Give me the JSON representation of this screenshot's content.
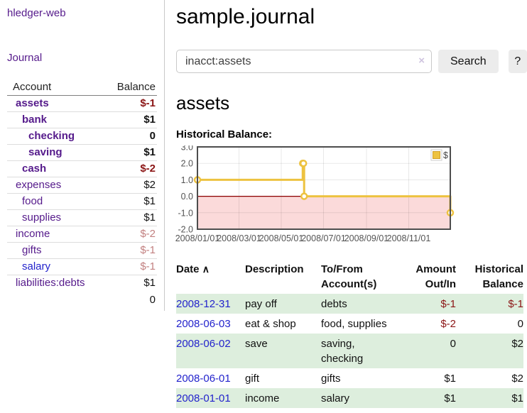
{
  "app": {
    "brand": "hledger-web",
    "nav_journal": "Journal"
  },
  "sidebar": {
    "table_headers": {
      "account": "Account",
      "balance": "Balance"
    },
    "accounts": [
      {
        "name": "assets",
        "balance": "$-1",
        "level": 1,
        "bold": true,
        "balance_style": "neg-strong"
      },
      {
        "name": "bank",
        "balance": "$1",
        "level": 2,
        "bold": true,
        "balance_style": "normal"
      },
      {
        "name": "checking",
        "balance": "0",
        "level": 3,
        "bold": true,
        "balance_style": "normal"
      },
      {
        "name": "saving",
        "balance": "$1",
        "level": 3,
        "bold": true,
        "balance_style": "normal"
      },
      {
        "name": "cash",
        "balance": "$-2",
        "level": 2,
        "bold": true,
        "balance_style": "neg-strong"
      },
      {
        "name": "expenses",
        "balance": "$2",
        "level": 1,
        "bold": false,
        "balance_style": "normal"
      },
      {
        "name": "food",
        "balance": "$1",
        "level": 2,
        "bold": false,
        "balance_style": "normal"
      },
      {
        "name": "supplies",
        "balance": "$1",
        "level": 2,
        "bold": false,
        "balance_style": "normal"
      },
      {
        "name": "income",
        "balance": "$-2",
        "level": 1,
        "bold": false,
        "balance_style": "neg-soft"
      },
      {
        "name": "gifts",
        "balance": "$-1",
        "level": 2,
        "bold": false,
        "balance_style": "neg-soft"
      },
      {
        "name": "salary",
        "balance": "$-1",
        "level": 2,
        "bold": false,
        "balance_style": "neg-soft",
        "link_style": "blue"
      },
      {
        "name": "liabilities:debts",
        "balance": "$1",
        "level": 1,
        "bold": false,
        "balance_style": "normal"
      }
    ],
    "total": "0"
  },
  "header": {
    "title": "sample.journal"
  },
  "search": {
    "value": "inacct:assets",
    "clear_icon": "×",
    "button": "Search",
    "help_button": "?"
  },
  "account_page": {
    "title": "assets"
  },
  "chart_data": {
    "type": "line",
    "step": true,
    "title": "Historical Balance:",
    "series": [
      {
        "name": "$",
        "color": "#edc240",
        "points": [
          {
            "date": "2008-01-01",
            "day": 0,
            "value": 1
          },
          {
            "date": "2008-06-01",
            "day": 152,
            "value": 2
          },
          {
            "date": "2008-06-02",
            "day": 153,
            "value": 2
          },
          {
            "date": "2008-06-03",
            "day": 154,
            "value": 0
          },
          {
            "date": "2008-12-31",
            "day": 365,
            "value": -1
          }
        ]
      }
    ],
    "x_ticks": [
      {
        "label": "2008/01/01",
        "day": 0
      },
      {
        "label": "2008/03/01",
        "day": 60
      },
      {
        "label": "2008/05/01",
        "day": 121
      },
      {
        "label": "2008/07/01",
        "day": 182
      },
      {
        "label": "2008/09/01",
        "day": 244
      },
      {
        "label": "2008/11/01",
        "day": 305
      }
    ],
    "y_ticks": [
      {
        "label": "3.0",
        "value": 3
      },
      {
        "label": "2.0",
        "value": 2
      },
      {
        "label": "1.0",
        "value": 1
      },
      {
        "label": "0.0",
        "value": 0
      },
      {
        "label": "-1.0",
        "value": -1
      },
      {
        "label": "-2.0",
        "value": -2
      }
    ],
    "xlim_days": [
      0,
      365
    ],
    "ylim": [
      -2,
      3
    ],
    "grid": true,
    "legend": {
      "label": "$",
      "position": "top-right"
    },
    "negative_region_fill": "#fbdada",
    "zero_line_color": "#8b0000"
  },
  "register": {
    "headers": {
      "date": "Date",
      "sort_icon": "∧",
      "description": "Description",
      "accounts_l1": "To/From",
      "accounts_l2": "Account(s)",
      "amount_l1": "Amount",
      "amount_l2": "Out/In",
      "balance_l1": "Historical",
      "balance_l2": "Balance"
    },
    "rows": [
      {
        "date": "2008-12-31",
        "description": "pay off",
        "accounts": "debts",
        "amount": "$-1",
        "balance": "$-1"
      },
      {
        "date": "2008-06-03",
        "description": "eat & shop",
        "accounts": "food, supplies",
        "amount": "$-2",
        "balance": "0"
      },
      {
        "date": "2008-06-02",
        "description": "save",
        "accounts": "saving, checking",
        "amount": "0",
        "balance": "$2"
      },
      {
        "date": "2008-06-01",
        "description": "gift",
        "accounts": "gifts",
        "amount": "$1",
        "balance": "$2"
      },
      {
        "date": "2008-01-01",
        "description": "income",
        "accounts": "salary",
        "amount": "$1",
        "balance": "$1"
      }
    ]
  },
  "colors": {
    "link_purple": "#551a8b",
    "link_blue": "#2323cc",
    "negative_strong": "#8b1515",
    "negative_soft": "#c28080",
    "row_green": "#ddeedd",
    "chart_line": "#edc240",
    "chart_negative_fill": "#fbdada",
    "chart_zero_line": "#8b0000",
    "chart_border": "#4d4d4d",
    "axis_label": "#545454"
  }
}
